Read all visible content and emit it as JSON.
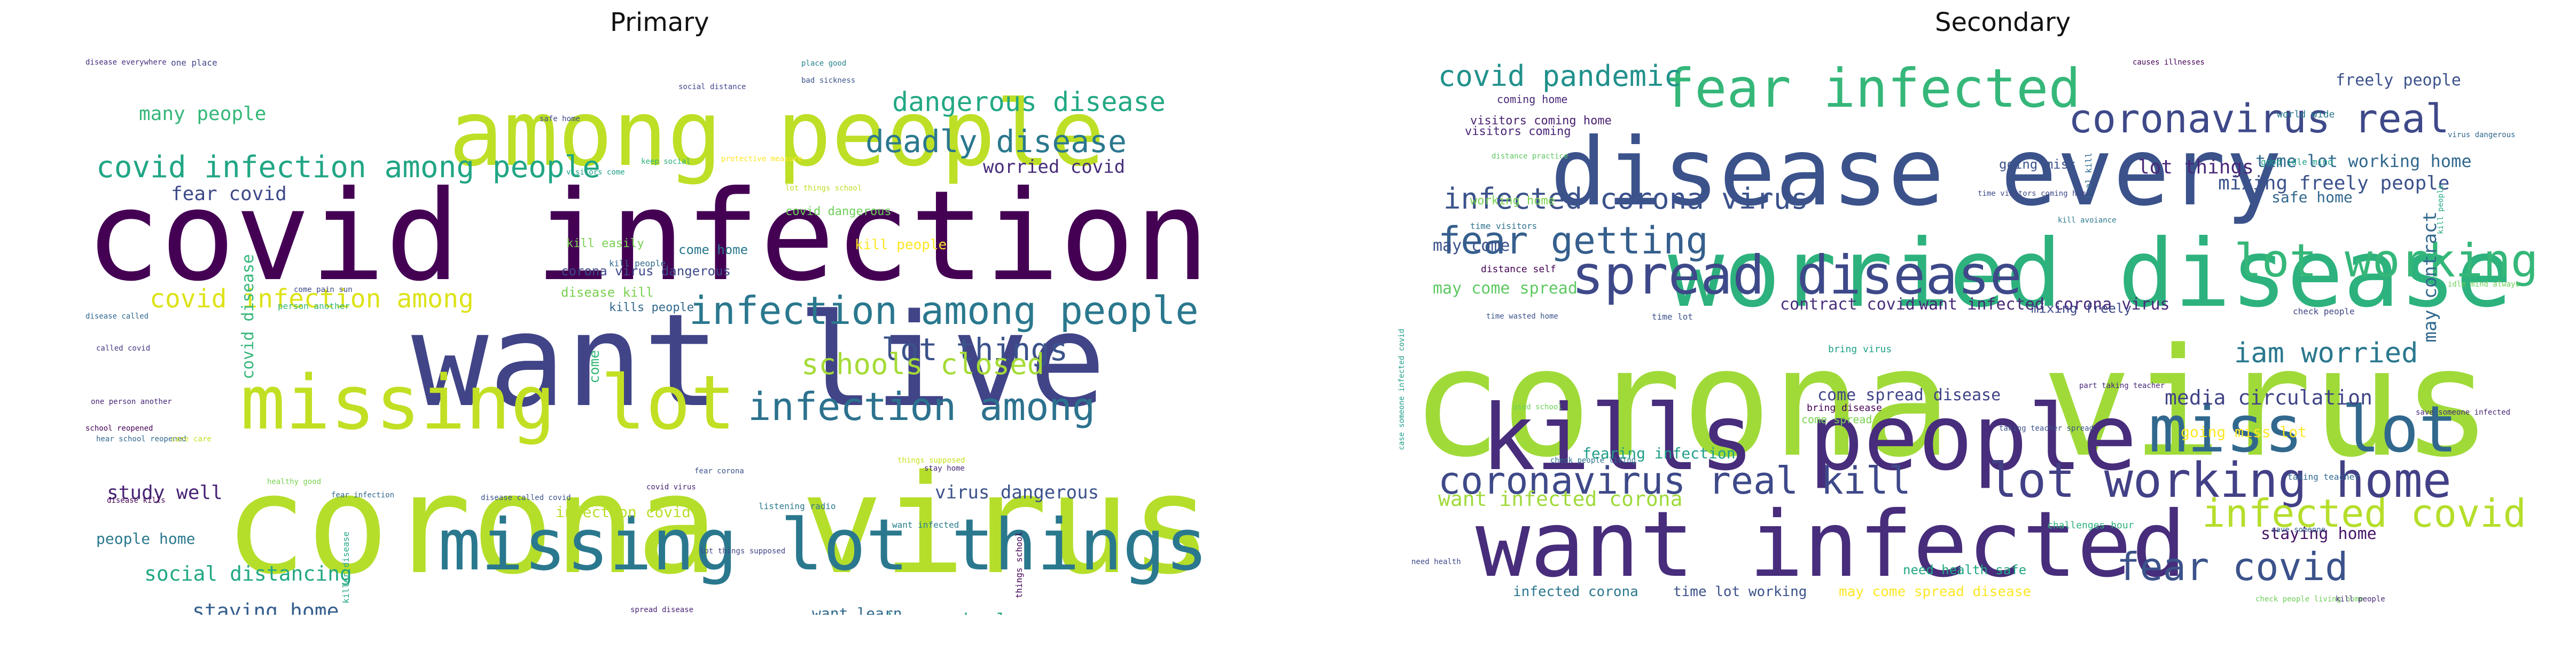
{
  "panels": [
    {
      "title": "Primary"
    },
    {
      "title": "Secondary"
    }
  ],
  "primary": {
    "words": [
      [
        "covid infection",
        "#440154"
      ],
      [
        "corona virus",
        "#b5de2b"
      ],
      [
        "want live",
        "#414487"
      ],
      [
        "among people",
        "#bddf26"
      ],
      [
        "missing lot things",
        "#2a788e"
      ],
      [
        "missing lot",
        "#c2df23"
      ],
      [
        "infection among people",
        "#2a788e"
      ],
      [
        "infection among",
        "#2c728e"
      ],
      [
        "covid infection among people",
        "#21a685"
      ],
      [
        "covid infection among",
        "#dde318"
      ],
      [
        "dangerous disease",
        "#22a884"
      ],
      [
        "deadly disease",
        "#2a788e"
      ],
      [
        "lot things",
        "#3b528b"
      ],
      [
        "schools closed",
        "#a5db36"
      ],
      [
        "social distancing",
        "#22a884"
      ],
      [
        "staying home",
        "#355f8d"
      ],
      [
        "study well",
        "#482475"
      ],
      [
        "virus dangerous",
        "#3b528b"
      ],
      [
        "worried covid",
        "#472d7b"
      ],
      [
        "many people",
        "#35b779"
      ],
      [
        "fear covid",
        "#3e4989"
      ],
      [
        "covid disease",
        "#35b779"
      ],
      [
        "people home",
        "#2a788e"
      ],
      [
        "know school",
        "#21a685"
      ],
      [
        "care life",
        "#482878"
      ],
      [
        "want learn",
        "#31688e"
      ],
      [
        "due covid",
        "#1f9e89"
      ],
      [
        "covid dangerous",
        "#6ece58"
      ],
      [
        "infection covid",
        "#b8de29"
      ],
      [
        "corona virus dangerous",
        "#3e4989"
      ],
      [
        "disease kill",
        "#7ad151"
      ],
      [
        "kill people",
        "#fde725"
      ],
      [
        "kill easily",
        "#7ad151"
      ],
      [
        "kills people",
        "#31688e"
      ],
      [
        "come home",
        "#2a788e"
      ],
      [
        "disease everywhere",
        "#472d7b"
      ],
      [
        "one place",
        "#414487"
      ],
      [
        "bad sickness",
        "#3b528b"
      ],
      [
        "place good",
        "#26828e"
      ],
      [
        "safe home",
        "#3e4989"
      ],
      [
        "social distance",
        "#404688"
      ],
      [
        "visitors come",
        "#1f9e89"
      ],
      [
        "keep social",
        "#2db27d"
      ],
      [
        "protective measure",
        "#fde725"
      ],
      [
        "lot things school",
        "#bddf26"
      ],
      [
        "called covid",
        "#443983"
      ],
      [
        "one person another",
        "#482878"
      ],
      [
        "school reopened",
        "#440154"
      ],
      [
        "hear school reopened",
        "#31688e"
      ],
      [
        "disease kills",
        "#440154"
      ],
      [
        "healthy good",
        "#7ad151"
      ],
      [
        "fear infection",
        "#31688e"
      ],
      [
        "disease called covid",
        "#3b528b"
      ],
      [
        "covid virus",
        "#482475"
      ],
      [
        "listening radio",
        "#2a788e"
      ],
      [
        "want infected",
        "#287c8e"
      ],
      [
        "stay home",
        "#482878"
      ],
      [
        "fear corona",
        "#3b528b"
      ],
      [
        "things supposed",
        "#cae11f"
      ],
      [
        "lot things supposed",
        "#414487"
      ],
      [
        "spread disease",
        "#482475"
      ],
      [
        "missing lot things supposed",
        "#453781"
      ],
      [
        "disease called",
        "#31688e"
      ],
      [
        "person another",
        "#35b779"
      ],
      [
        "come pain sun",
        "#3e4989"
      ],
      [
        "care care",
        "#c8e020"
      ],
      [
        "killer disease",
        "#22a884"
      ],
      [
        "things school",
        "#440154"
      ],
      [
        "come",
        "#35b779"
      ],
      [
        "kill people",
        "#31688e"
      ]
    ]
  },
  "secondary": {
    "words": [
      [
        "corona virus",
        "#a0da39"
      ],
      [
        "disease every",
        "#3b528b"
      ],
      [
        "worried disease",
        "#2db27d"
      ],
      [
        "kills people",
        "#472d7b"
      ],
      [
        "want infected",
        "#472d7b"
      ],
      [
        "fear infected",
        "#35b779"
      ],
      [
        "lot working",
        "#35b779"
      ],
      [
        "spread disease",
        "#3e4989"
      ],
      [
        "miss lot",
        "#31688e"
      ],
      [
        "lot working home",
        "#424086"
      ],
      [
        "coronavirus real",
        "#3e4989"
      ],
      [
        "coronavirus real kill",
        "#3e4989"
      ],
      [
        "fear getting",
        "#355f8d"
      ],
      [
        "infected corona virus",
        "#3b528b"
      ],
      [
        "infected covid",
        "#b5de2b"
      ],
      [
        "fear covid",
        "#3b528b"
      ],
      [
        "covid pandemic",
        "#21918c"
      ],
      [
        "iam worried",
        "#2a788e"
      ],
      [
        "media circulation",
        "#414487"
      ],
      [
        "want infected corona",
        "#9fda3a"
      ],
      [
        "want infected corona virus",
        "#482878"
      ],
      [
        "come spread disease",
        "#414487"
      ],
      [
        "contract covid",
        "#472d7b"
      ],
      [
        "may come spread",
        "#5ec962"
      ],
      [
        "may come",
        "#3b528b"
      ],
      [
        "may contract",
        "#31688e"
      ],
      [
        "lot things",
        "#482878"
      ],
      [
        "mixing freely people",
        "#3b528b"
      ],
      [
        "time lot working home",
        "#31688e"
      ],
      [
        "freely people",
        "#3b528b"
      ],
      [
        "going miss lot",
        "#fde725"
      ],
      [
        "infected corona",
        "#2a788e"
      ],
      [
        "time lot working",
        "#3b528b"
      ],
      [
        "may come spread disease",
        "#fde725"
      ],
      [
        "fearing infection",
        "#1f9e89"
      ],
      [
        "going miss",
        "#3b528b"
      ],
      [
        "safe home",
        "#31688e"
      ],
      [
        "staying home",
        "#481467"
      ],
      [
        "visitors coming home",
        "#481f70"
      ],
      [
        "visitors coming",
        "#482475"
      ],
      [
        "coming home",
        "#482878"
      ],
      [
        "working home",
        "#7ad151"
      ],
      [
        "mixing freely",
        "#3e4989"
      ],
      [
        "bring virus",
        "#1fa088"
      ],
      [
        "bring disease",
        "#440154"
      ],
      [
        "real kill",
        "#31688e"
      ],
      [
        "time lot",
        "#3b528b"
      ],
      [
        "need health safe",
        "#22a884"
      ],
      [
        "challenges hour",
        "#2db27d"
      ],
      [
        "come spread",
        "#7ad151"
      ],
      [
        "need health",
        "#3e4989"
      ],
      [
        "check people living home",
        "#6ece58"
      ],
      [
        "causes illnesses",
        "#440154"
      ],
      [
        "world wide",
        "#2a788e"
      ],
      [
        "good idle mind",
        "#1f9e89"
      ],
      [
        "idle mind always",
        "#6ece58"
      ],
      [
        "time visitors coming home",
        "#3e4989"
      ],
      [
        "check people",
        "#414487"
      ],
      [
        "taking teacher",
        "#31688e"
      ],
      [
        "part taking teacher",
        "#482878"
      ],
      [
        "time wasted home",
        "#3b528b"
      ],
      [
        "kill people",
        "#22a884"
      ],
      [
        "kill avoiance",
        "#2a788e"
      ],
      [
        "distance practice",
        "#5ec962"
      ],
      [
        "distance self",
        "#440154"
      ],
      [
        "time visitors",
        "#2c728e"
      ],
      [
        "save someone infected",
        "#482878"
      ],
      [
        "case someone infected covid",
        "#1f9e89"
      ],
      [
        "used school",
        "#6ece58"
      ],
      [
        "come spread",
        "#31688e"
      ],
      [
        "save someone",
        "#355f8d"
      ],
      [
        "taking teacher spread",
        "#3b528b"
      ],
      [
        "check people living",
        "#2c728e"
      ],
      [
        "kill people",
        "#482878"
      ],
      [
        "virus dangerous",
        "#31688e"
      ]
    ]
  }
}
